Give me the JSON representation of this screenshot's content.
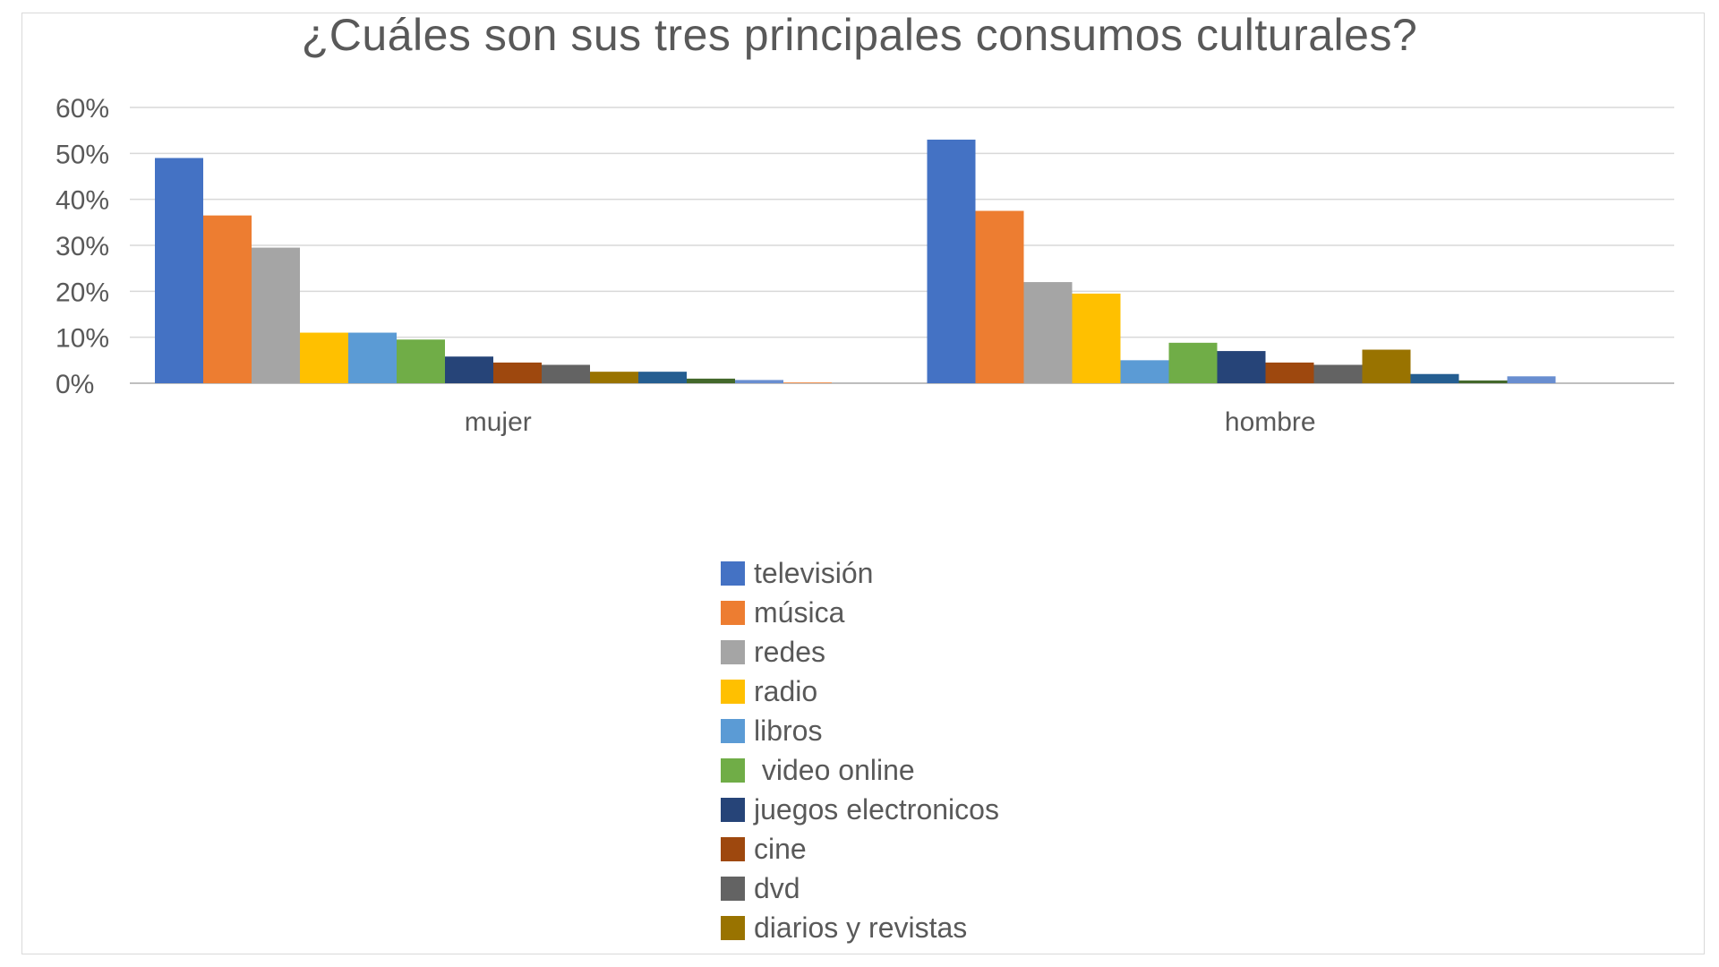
{
  "chart_data": {
    "type": "bar",
    "title": "¿Cuáles son sus tres principales consumos culturales?",
    "xlabel": "",
    "ylabel": "",
    "categories": [
      "mujer",
      "hombre"
    ],
    "ylim": [
      0,
      0.6
    ],
    "yticks": [
      "0%",
      "10%",
      "20%",
      "30%",
      "40%",
      "50%",
      "60%"
    ],
    "grid": true,
    "legend_position": "bottom",
    "series": [
      {
        "name": "televisión",
        "color": "#4472C4",
        "values": [
          0.49,
          0.53
        ],
        "legend": true
      },
      {
        "name": "música",
        "color": "#ED7D31",
        "values": [
          0.365,
          0.375
        ],
        "legend": true
      },
      {
        "name": "redes",
        "color": "#A5A5A5",
        "values": [
          0.295,
          0.22
        ],
        "legend": true
      },
      {
        "name": "radio",
        "color": "#FFC000",
        "values": [
          0.11,
          0.195
        ],
        "legend": true
      },
      {
        "name": "libros",
        "color": "#5B9BD5",
        "values": [
          0.11,
          0.05
        ],
        "legend": true
      },
      {
        "name": " video online",
        "color": "#70AD47",
        "values": [
          0.095,
          0.088
        ],
        "legend": true
      },
      {
        "name": "juegos electronicos",
        "color": "#264478",
        "values": [
          0.058,
          0.07
        ],
        "legend": true
      },
      {
        "name": "cine",
        "color": "#9E480E",
        "values": [
          0.045,
          0.045
        ],
        "legend": true
      },
      {
        "name": "dvd",
        "color": "#636363",
        "values": [
          0.04,
          0.04
        ],
        "legend": true
      },
      {
        "name": "diarios y revistas",
        "color": "#997300",
        "values": [
          0.025,
          0.073
        ],
        "legend": true
      },
      {
        "color": "#255E91",
        "values": [
          0.025,
          0.02
        ],
        "legend": false
      },
      {
        "color": "#43682B",
        "values": [
          0.01,
          0.006
        ],
        "legend": false
      },
      {
        "color": "#698ED0",
        "values": [
          0.007,
          0.015
        ],
        "legend": false
      },
      {
        "color": "#F1975A",
        "values": [
          0.002,
          0.0
        ],
        "legend": false
      },
      {
        "color": "#B7B7B7",
        "values": [
          0.001,
          0.0
        ],
        "legend": false
      }
    ]
  }
}
